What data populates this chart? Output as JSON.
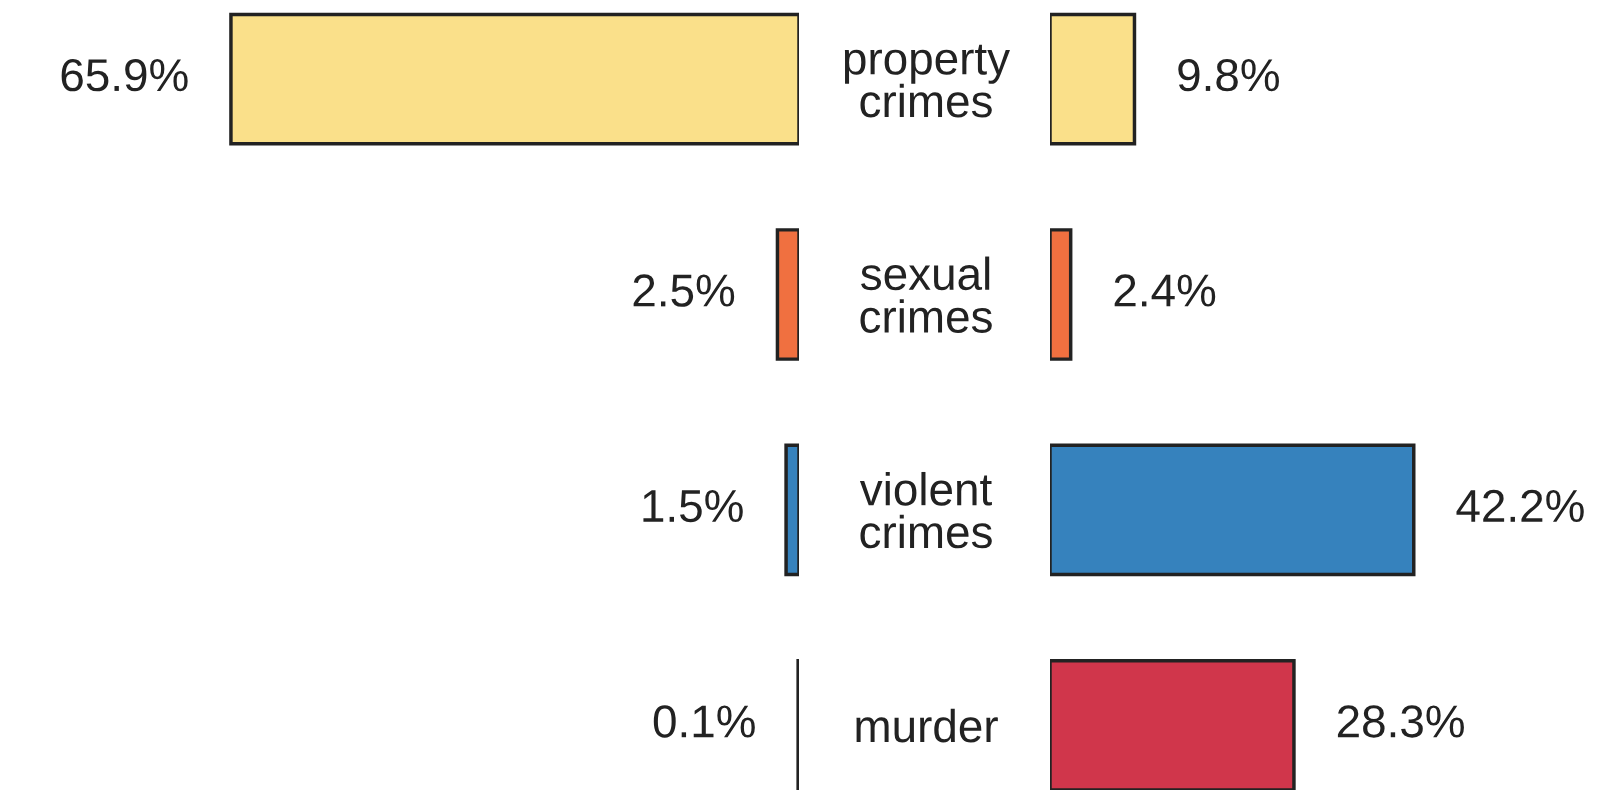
{
  "chart_data": [
    {
      "type": "bar",
      "orientation": "horizontal",
      "categories": [
        "property crimes",
        "sexual crimes",
        "violent crimes",
        "murder"
      ],
      "values": [
        65.9,
        2.5,
        1.5,
        0.1
      ],
      "value_labels": [
        "65.9%",
        "2.5%",
        "1.5%",
        "0.1%"
      ],
      "colors": [
        "#fae08a",
        "#f07040",
        "#3682bd",
        "#d0364b"
      ],
      "tick_labels": "y",
      "grid": false,
      "legend": false
    },
    {
      "type": "bar",
      "orientation": "horizontal",
      "categories": [
        null,
        null,
        null,
        null
      ],
      "values": [
        9.8,
        2.4,
        42.2,
        28.3
      ],
      "value_labels": [
        "9.8%",
        "2.4%",
        "42.2%",
        "28.3%"
      ],
      "colors": [
        "#fae08a",
        "#f07040",
        "#3682bd",
        "#d0364b"
      ],
      "tick_labels": false,
      "grid": false,
      "legend": false
    }
  ]
}
